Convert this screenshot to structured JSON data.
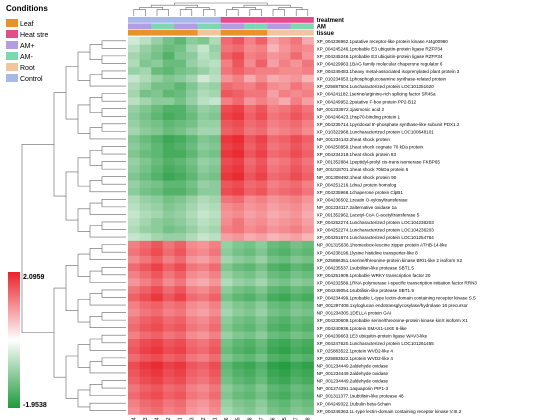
{
  "legend": {
    "title": "Conditions",
    "items": [
      {
        "label": "Leaf",
        "color": "#e9922a"
      },
      {
        "label": "Heat stre",
        "color": "#e64b8a"
      },
      {
        "label": "AM+",
        "color": "#b59be0"
      },
      {
        "label": "AM-",
        "color": "#7fd6b3"
      },
      {
        "label": "Root",
        "color": "#f3c59e"
      },
      {
        "label": "Control",
        "color": "#a8b8e8"
      }
    ]
  },
  "annotation_tracks": [
    "treatment",
    "AM",
    "tissue"
  ],
  "colors": {
    "high": "#e8222a",
    "mid": "#ffffff",
    "low": "#1f9a3c",
    "dendrogram": "#666666"
  },
  "chart_data": {
    "type": "heatmap",
    "scale": {
      "max": 2.0959,
      "min": -1.9538,
      "max_label": "2.0959",
      "min_label": "-1.9538"
    },
    "columns": [
      "L4",
      "E3",
      "E4",
      "L2",
      "L1",
      "L3",
      "B2",
      "B1",
      "L6",
      "L5",
      "L8",
      "L7",
      "R6",
      "R5",
      "R7",
      "R8"
    ],
    "column_annotations": {
      "treatment": [
        "#a8b8e8",
        "#a8b8e8",
        "#a8b8e8",
        "#a8b8e8",
        "#a8b8e8",
        "#a8b8e8",
        "#a8b8e8",
        "#a8b8e8",
        "#e64b8a",
        "#e64b8a",
        "#e64b8a",
        "#e64b8a",
        "#e64b8a",
        "#e64b8a",
        "#e64b8a",
        "#e64b8a"
      ],
      "AM": [
        "#b59be0",
        "#b59be0",
        "#7fd6b3",
        "#7fd6b3",
        "#b59be0",
        "#b59be0",
        "#7fd6b3",
        "#7fd6b3",
        "#b59be0",
        "#b59be0",
        "#7fd6b3",
        "#7fd6b3",
        "#b59be0",
        "#b59be0",
        "#7fd6b3",
        "#7fd6b3"
      ],
      "tissue": [
        "#e9922a",
        "#e9922a",
        "#e9922a",
        "#e9922a",
        "#e9922a",
        "#e9922a",
        "#f3c59e",
        "#f3c59e",
        "#e9922a",
        "#e9922a",
        "#e9922a",
        "#e9922a",
        "#f3c59e",
        "#f3c59e",
        "#f3c59e",
        "#f3c59e"
      ]
    },
    "rows": [
      "XP_004236962.1putative receptor-like protein kinase At4g00960",
      "XP_004245246.1probable E3 ubiquitin-protein ligase RZFP34",
      "XP_004245246.1probable E3 ubiquitin-protein ligase RZFP34",
      "XP_004229963.1BAG family molecular chaperone regulator 6",
      "XP_004249483.1heavy metal-associated isoprenylated plant protein 3",
      "XP_010234653.1phosphoglucosamine synthase-related protein",
      "XP_025887504.1uncharacterized protein LOC101251620",
      "XP_004241182.1serine/arginine-rich splicing factor SR45a",
      "XP_004249952.2putative F-box protein PP2-B12",
      "NP_001233972.1jasmonic acid 2",
      "XP_004246423.1hsp70-binding protein 1",
      "XP_004235714.1pyridoxal 5'-phosphate synthase-like subunit PDX1.2",
      "XP_010322968.1uncharacterized protein LOC100648101",
      "NP_001234143.2heat shock protein",
      "XP_004250959.1heat shock cognate 70 kDa protein",
      "XP_004234218.1heat shock protein 83",
      "XP_001352884.1peptidyl-prolyl cis-trans isomerase FKBP65",
      "NP_001018701.1heat shock 70kDa protein 5",
      "NP_001308492.1heat shock protein 90",
      "XP_004251216.1dnaJ protein homolog",
      "XP_004235966.1chaperone protein ClpB1",
      "XP_004236502.1zeatin O-xylosyltransferase",
      "NP_001234117.2alternative oxidase 1a",
      "XP_001352962.1acetyl-CoA C-acetyltransferase 5",
      "XP_004252274.1uncharacterized protein LOC104236203",
      "XP_004252274.1uncharacterized protein LOC104236203",
      "XP_004251874.1uncharacterized protein LOC101254764",
      "NP_001315636.1homeobox-leucine zipper protein ATHB-14-like",
      "XP_004238196.1lysine histidine transporter-like 8",
      "XP_025886351.1serine/threonine-protein kinase BRI1-like 2 isoform X2",
      "XP_004235537.1subtilisin-like protease SBT1.5",
      "XP_004251909.1probable WRKY transcription factor 20",
      "XP_004232589.1RNA polymerase I-specific transcription initiation factor RRN3",
      "XP_004249054.1subtilisin-like protease SBT1.9",
      "XP_004234499.1probable L-type lectin-domain containing receptor kinase S.5",
      "NP_001297408.1xyloglucan endotransglycosylase/hydrolase 16 precursor",
      "NP_001234305.1DELLA protein GAI",
      "XP_004230609.1probable serine/threonine-protein kinase kinX isoform X1",
      "XP_004240936.1protein SMAX1-LIKE 6-like",
      "XP_004239663.1E3 ubiquitin-protein ligase WAV3-like",
      "XP_004247620.1uncharacterized protein LOC101261455",
      "XP_025883522.1protein WVD2-like 4",
      "XP_025883522.1protein WVD2-like 4",
      "NP_001234449.2aldehyde oxidase",
      "NP_001234449.2aldehyde oxidase",
      "NP_001234449.2aldehyde oxidase",
      "NP_001274291.1aquaporin PIP1-3",
      "NP_001311377.1subtilisin-like protease 48",
      "XP_004249322.1tubulin beta-5chain",
      "XP_004246363.1L-type lectin-domain containing receptor kinase V.III.2"
    ],
    "values": [
      [
        -0.4,
        -0.6,
        -0.9,
        -1.2,
        -1.4,
        -1.0,
        -1.1,
        -0.7,
        1.4,
        1.6,
        1.2,
        1.5,
        0.9,
        1.1,
        1.3,
        0.8
      ],
      [
        -0.6,
        -0.9,
        -1.1,
        -1.3,
        -1.2,
        -0.8,
        -0.5,
        -0.9,
        1.3,
        1.4,
        1.1,
        1.2,
        0.7,
        1.0,
        1.2,
        1.1
      ],
      [
        -0.8,
        -1.0,
        -1.2,
        -1.5,
        -1.1,
        -1.0,
        -0.6,
        -0.8,
        1.5,
        1.7,
        1.2,
        1.3,
        1.0,
        1.1,
        1.4,
        1.0
      ],
      [
        -0.7,
        -1.1,
        -1.0,
        -1.3,
        -1.3,
        -0.9,
        -0.7,
        -0.6,
        1.2,
        1.6,
        1.1,
        1.5,
        0.9,
        1.2,
        1.0,
        1.3
      ],
      [
        -0.9,
        -0.8,
        -1.3,
        -1.4,
        -1.2,
        -1.1,
        -0.9,
        -0.7,
        1.3,
        1.5,
        1.3,
        1.2,
        1.2,
        1.1,
        1.1,
        1.2
      ],
      [
        -0.5,
        -0.7,
        -0.9,
        -1.1,
        -1.0,
        -0.8,
        -0.4,
        -0.6,
        1.0,
        1.2,
        0.8,
        1.1,
        0.8,
        0.9,
        1.0,
        0.7
      ],
      [
        -0.7,
        -0.9,
        -1.2,
        -1.2,
        -1.4,
        -1.1,
        -0.8,
        -0.9,
        1.4,
        1.3,
        1.2,
        1.4,
        1.1,
        1.0,
        1.3,
        1.1
      ],
      [
        -0.8,
        -1.2,
        -1.1,
        -1.4,
        -1.3,
        -1.0,
        -0.7,
        -0.8,
        1.6,
        1.5,
        1.3,
        1.3,
        0.9,
        1.2,
        1.1,
        1.2
      ],
      [
        -0.6,
        -0.8,
        -1.0,
        -1.0,
        -1.2,
        -0.9,
        -0.6,
        -0.5,
        1.2,
        1.4,
        1.0,
        1.2,
        1.0,
        0.8,
        1.2,
        0.9
      ],
      [
        -0.9,
        -1.1,
        -1.3,
        -1.5,
        -1.5,
        -1.2,
        -0.9,
        -1.0,
        1.7,
        1.8,
        1.4,
        1.6,
        1.2,
        1.3,
        1.5,
        1.3
      ],
      [
        -1.0,
        -1.2,
        -1.4,
        -1.6,
        -1.5,
        -1.3,
        -1.0,
        -1.1,
        1.8,
        1.9,
        1.5,
        1.7,
        1.3,
        1.4,
        1.6,
        1.4
      ],
      [
        -0.9,
        -1.1,
        -1.2,
        -1.4,
        -1.3,
        -1.2,
        -0.9,
        -0.9,
        1.6,
        1.7,
        1.4,
        1.5,
        1.2,
        1.3,
        1.4,
        1.2
      ],
      [
        -0.8,
        -1.0,
        -1.1,
        -1.3,
        -1.2,
        -1.0,
        -0.8,
        -0.8,
        1.5,
        1.6,
        1.3,
        1.4,
        1.1,
        1.2,
        1.3,
        1.1
      ],
      [
        -1.1,
        -1.3,
        -1.5,
        -1.7,
        -1.6,
        -1.4,
        -1.1,
        -1.2,
        1.9,
        2.0,
        1.6,
        1.8,
        1.4,
        1.5,
        1.7,
        1.5
      ],
      [
        -1.0,
        -1.2,
        -1.4,
        -1.6,
        -1.5,
        -1.3,
        -1.0,
        -1.1,
        1.8,
        1.9,
        1.5,
        1.7,
        1.3,
        1.4,
        1.6,
        1.4
      ],
      [
        -1.1,
        -1.3,
        -1.4,
        -1.6,
        -1.6,
        -1.4,
        -1.1,
        -1.2,
        1.9,
        2.0,
        1.6,
        1.8,
        1.4,
        1.5,
        1.7,
        1.5
      ],
      [
        -0.9,
        -1.1,
        -1.3,
        -1.5,
        -1.4,
        -1.2,
        -0.9,
        -1.0,
        1.7,
        1.8,
        1.4,
        1.6,
        1.2,
        1.3,
        1.5,
        1.3
      ],
      [
        -1.0,
        -1.2,
        -1.4,
        -1.6,
        -1.5,
        -1.3,
        -1.0,
        -1.1,
        1.8,
        1.9,
        1.5,
        1.7,
        1.3,
        1.4,
        1.6,
        1.4
      ],
      [
        -1.1,
        -1.3,
        -1.5,
        -1.7,
        -1.6,
        -1.4,
        -1.1,
        -1.2,
        1.9,
        2.0,
        1.6,
        1.8,
        1.4,
        1.5,
        1.7,
        1.5
      ],
      [
        -0.9,
        -1.1,
        -1.2,
        -1.4,
        -1.4,
        -1.2,
        -0.9,
        -1.0,
        1.6,
        1.7,
        1.4,
        1.5,
        1.2,
        1.3,
        1.4,
        1.2
      ],
      [
        -1.0,
        -1.2,
        -1.3,
        -1.5,
        -1.5,
        -1.3,
        -1.0,
        -1.0,
        1.7,
        1.8,
        1.5,
        1.6,
        1.3,
        1.4,
        1.5,
        1.3
      ],
      [
        -0.7,
        -0.9,
        -1.0,
        -1.2,
        -1.1,
        -0.9,
        -0.7,
        -0.8,
        1.3,
        1.4,
        1.1,
        1.2,
        1.0,
        1.1,
        1.2,
        1.0
      ],
      [
        -0.6,
        -0.8,
        -0.9,
        -1.1,
        -1.0,
        -0.8,
        -0.6,
        -0.7,
        1.1,
        1.2,
        1.0,
        1.1,
        0.9,
        1.0,
        1.1,
        0.9
      ],
      [
        -0.5,
        -0.7,
        -0.8,
        -1.0,
        -0.9,
        -0.7,
        -0.5,
        -0.6,
        1.0,
        1.1,
        0.9,
        1.0,
        0.8,
        0.9,
        1.0,
        0.8
      ],
      [
        -0.6,
        -0.8,
        -1.0,
        -1.1,
        -1.0,
        -0.8,
        -0.6,
        -0.7,
        1.1,
        1.3,
        1.0,
        1.1,
        0.9,
        1.0,
        1.1,
        0.9
      ],
      [
        -0.7,
        -0.9,
        -1.0,
        -1.2,
        -1.1,
        -0.9,
        -0.7,
        -0.8,
        1.2,
        1.3,
        1.1,
        1.2,
        1.0,
        1.1,
        1.2,
        1.0
      ],
      [
        -0.5,
        -0.6,
        -0.8,
        -0.9,
        -0.9,
        -0.7,
        -0.5,
        -0.6,
        0.9,
        1.0,
        0.8,
        0.9,
        0.7,
        0.8,
        0.9,
        0.7
      ],
      [
        1.2,
        1.4,
        1.6,
        1.3,
        1.5,
        1.1,
        1.0,
        1.2,
        -0.9,
        -1.1,
        -1.2,
        -1.0,
        -1.3,
        -1.4,
        -1.2,
        -1.3
      ],
      [
        1.3,
        1.5,
        1.7,
        1.4,
        1.6,
        1.2,
        1.1,
        1.3,
        -1.0,
        -1.2,
        -1.3,
        -1.1,
        -1.4,
        -1.5,
        -1.3,
        -1.4
      ],
      [
        1.1,
        1.3,
        1.5,
        1.2,
        1.4,
        1.0,
        0.9,
        1.1,
        -0.8,
        -1.0,
        -1.1,
        -0.9,
        -1.2,
        -1.3,
        -1.1,
        -1.2
      ],
      [
        1.4,
        1.6,
        1.8,
        1.5,
        1.7,
        1.3,
        1.2,
        1.4,
        -1.1,
        -1.3,
        -1.4,
        -1.2,
        -1.5,
        -1.6,
        -1.4,
        -1.5
      ],
      [
        1.2,
        1.4,
        1.6,
        1.3,
        1.5,
        1.1,
        1.0,
        1.2,
        -0.9,
        -1.1,
        -1.2,
        -1.0,
        -1.3,
        -1.4,
        -1.2,
        -1.3
      ],
      [
        1.0,
        1.2,
        1.4,
        1.1,
        1.3,
        0.9,
        0.8,
        1.0,
        -0.7,
        -0.9,
        -1.0,
        -0.8,
        -1.1,
        -1.2,
        -1.0,
        -1.1
      ],
      [
        1.3,
        1.5,
        1.7,
        1.4,
        1.6,
        1.2,
        1.1,
        1.3,
        -1.0,
        -1.2,
        -1.3,
        -1.1,
        -1.4,
        -1.5,
        -1.3,
        -1.4
      ],
      [
        1.5,
        1.7,
        1.9,
        1.6,
        1.8,
        1.4,
        1.3,
        1.5,
        -1.2,
        -1.4,
        -1.5,
        -1.3,
        -1.6,
        -1.7,
        -1.5,
        -1.6
      ],
      [
        1.2,
        1.4,
        1.5,
        1.3,
        1.4,
        1.1,
        1.0,
        1.2,
        -0.9,
        -1.1,
        -1.2,
        -1.0,
        -1.3,
        -1.4,
        -1.2,
        -1.3
      ],
      [
        1.1,
        1.3,
        1.4,
        1.2,
        1.3,
        1.0,
        0.9,
        1.1,
        -0.8,
        -1.0,
        -1.1,
        -0.9,
        -1.2,
        -1.3,
        -1.1,
        -1.2
      ],
      [
        1.3,
        1.5,
        1.6,
        1.4,
        1.5,
        1.2,
        1.1,
        1.3,
        -1.0,
        -1.2,
        -1.3,
        -1.1,
        -1.4,
        -1.5,
        -1.3,
        -1.4
      ],
      [
        1.4,
        1.6,
        1.7,
        1.5,
        1.6,
        1.3,
        1.2,
        1.4,
        -1.1,
        -1.3,
        -1.4,
        -1.2,
        -1.5,
        -1.6,
        -1.4,
        -1.5
      ],
      [
        1.2,
        1.4,
        1.5,
        1.3,
        1.4,
        1.1,
        1.0,
        1.2,
        -0.9,
        -1.1,
        -1.2,
        -1.0,
        -1.3,
        -1.4,
        -1.2,
        -1.3
      ],
      [
        1.5,
        1.7,
        1.8,
        1.6,
        1.7,
        1.4,
        1.3,
        1.5,
        -1.2,
        -1.4,
        -1.5,
        -1.3,
        -1.6,
        -1.7,
        -1.5,
        -1.6
      ],
      [
        1.6,
        1.8,
        1.9,
        1.7,
        1.8,
        1.5,
        1.4,
        1.6,
        -1.3,
        -1.5,
        -1.6,
        -1.4,
        -1.7,
        -1.8,
        -1.6,
        -1.7
      ],
      [
        1.4,
        1.6,
        1.7,
        1.5,
        1.6,
        1.3,
        1.2,
        1.4,
        -1.1,
        -1.3,
        -1.4,
        -1.2,
        -1.5,
        -1.6,
        -1.4,
        -1.5
      ],
      [
        1.7,
        1.9,
        2.0,
        1.8,
        1.9,
        1.6,
        1.5,
        1.7,
        -1.4,
        -1.6,
        -1.7,
        -1.5,
        -1.8,
        -1.9,
        -1.7,
        -1.8
      ],
      [
        1.6,
        1.8,
        1.9,
        1.7,
        1.8,
        1.5,
        1.4,
        1.6,
        -1.3,
        -1.5,
        -1.6,
        -1.4,
        -1.7,
        -1.8,
        -1.6,
        -1.7
      ],
      [
        1.5,
        1.7,
        1.8,
        1.6,
        1.7,
        1.4,
        1.3,
        1.5,
        -1.2,
        -1.4,
        -1.5,
        -1.3,
        -1.6,
        -1.7,
        -1.5,
        -1.6
      ],
      [
        1.3,
        1.5,
        1.6,
        1.4,
        1.5,
        1.2,
        1.1,
        1.3,
        -1.0,
        -1.2,
        -1.3,
        -1.1,
        -1.4,
        -1.5,
        -1.3,
        -1.4
      ],
      [
        1.4,
        1.6,
        1.7,
        1.5,
        1.6,
        1.3,
        1.2,
        1.4,
        -1.1,
        -1.3,
        -1.4,
        -1.2,
        -1.5,
        -1.6,
        -1.4,
        -1.5
      ],
      [
        1.2,
        1.4,
        1.5,
        1.3,
        1.4,
        1.1,
        1.0,
        1.2,
        -0.9,
        -1.1,
        -1.2,
        -1.0,
        -1.3,
        -1.4,
        -1.2,
        -1.3
      ],
      [
        1.1,
        1.3,
        1.4,
        1.2,
        1.3,
        1.0,
        0.9,
        1.1,
        -0.8,
        -1.0,
        -1.1,
        -0.9,
        -1.2,
        -1.3,
        -1.1,
        -1.2
      ]
    ]
  }
}
